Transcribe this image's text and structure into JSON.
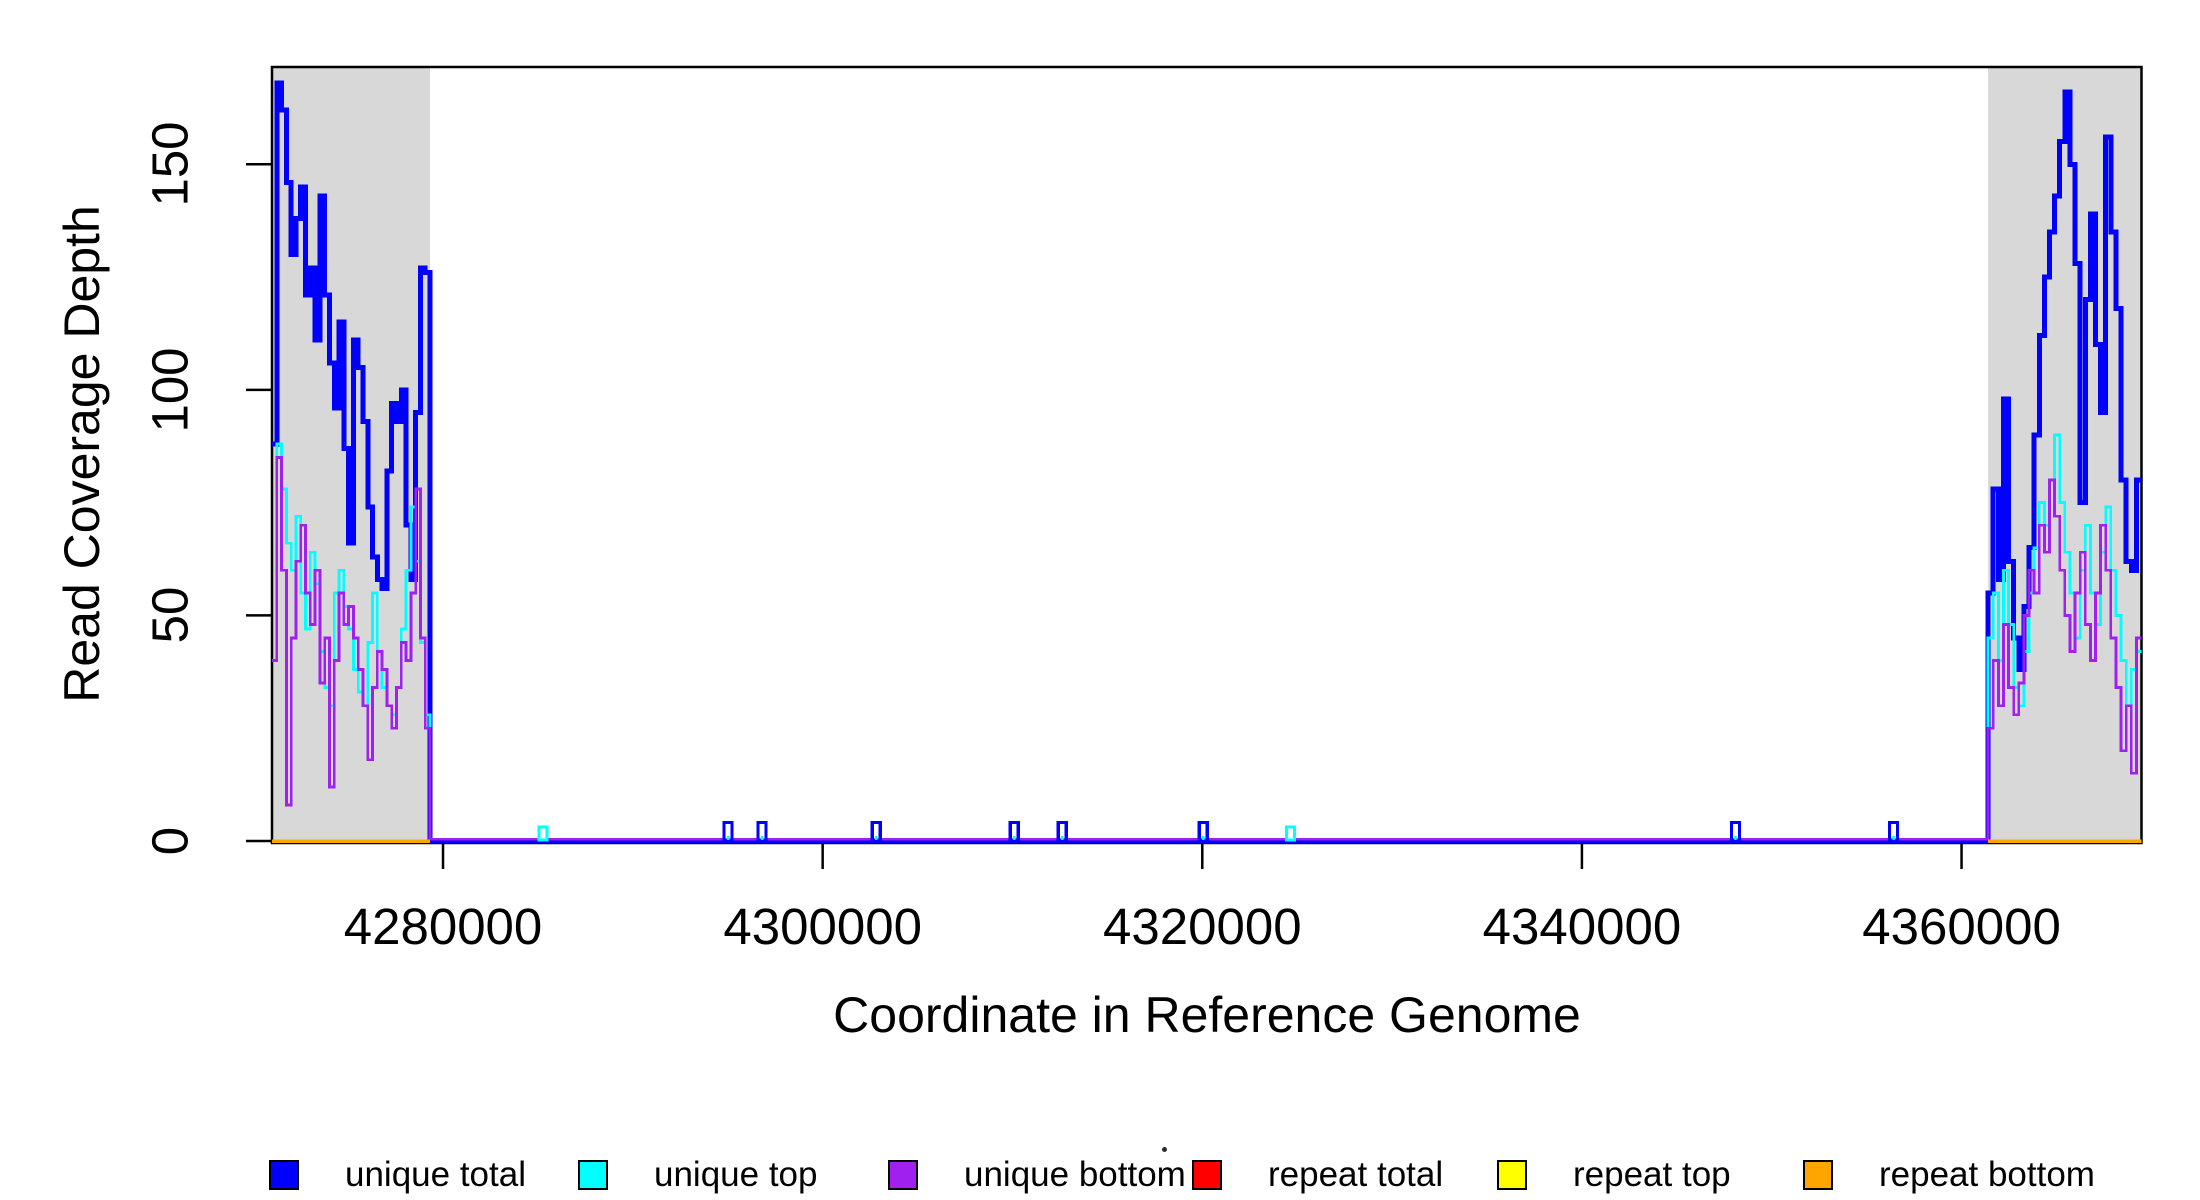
{
  "figure": {
    "background": "#FFFFFF",
    "plot_border_color": "#000000",
    "shading_color": "#D8D8D8"
  },
  "y_axis": {
    "title": "Read Coverage Depth",
    "ticks": [
      "0",
      "50",
      "100",
      "150"
    ],
    "tick_values": [
      0,
      50,
      100,
      150
    ]
  },
  "x_axis": {
    "title": "Coordinate in Reference Genome",
    "ticks": [
      "4280000",
      "4300000",
      "4320000",
      "4340000",
      "4360000"
    ],
    "tick_values": [
      4280000,
      4300000,
      4320000,
      4340000,
      4360000
    ]
  },
  "legend": {
    "items": [
      {
        "label": "unique total",
        "color": "#0000FF"
      },
      {
        "label": "unique top",
        "color": "#00FFFF"
      },
      {
        "label": "unique bottom",
        "color": "#A020F0"
      },
      {
        "label": "repeat total",
        "color": "#FF0000"
      },
      {
        "label": "repeat top",
        "color": "#FFFF00"
      },
      {
        "label": "repeat bottom",
        "color": "#FFA500"
      }
    ]
  },
  "chart_data": {
    "type": "line",
    "line_style": "step",
    "title": "",
    "xlabel": "Coordinate in Reference Genome",
    "ylabel": "Read Coverage Depth",
    "xlim": [
      4270990,
      4369480
    ],
    "ylim": [
      0,
      172
    ],
    "x_ticks": [
      4280000,
      4300000,
      4320000,
      4340000,
      4360000
    ],
    "y_ticks": [
      0,
      50,
      100,
      150
    ],
    "grid": false,
    "legend_position": "bottom",
    "shaded_regions": [
      {
        "x_start": 4270990,
        "x_end": 4279315,
        "color": "#D8D8D8"
      },
      {
        "x_start": 4361400,
        "x_end": 4369480,
        "color": "#D8D8D8"
      }
    ],
    "left_block": {
      "x_start": 4270990,
      "x_end": 4279315,
      "series": [
        {
          "name": "unique total",
          "color": "#0000FF",
          "width": 5,
          "values": [
            88,
            168,
            162,
            146,
            130,
            138,
            145,
            121,
            127,
            111,
            143,
            121,
            106,
            96,
            115,
            87,
            66,
            111,
            105,
            93,
            74,
            63,
            58,
            56,
            82,
            97,
            93,
            100,
            70,
            58,
            95,
            127,
            126
          ]
        },
        {
          "name": "unique top",
          "color": "#00FFFF",
          "width": 2.8,
          "values": [
            40,
            88,
            78,
            66,
            60,
            72,
            55,
            47,
            64,
            57,
            42,
            34,
            30,
            55,
            60,
            52,
            47,
            38,
            33,
            30,
            44,
            55,
            42,
            34,
            30,
            28,
            34,
            47,
            60,
            74,
            62,
            44,
            28
          ]
        },
        {
          "name": "unique bottom",
          "color": "#A020F0",
          "width": 2.8,
          "values": [
            40,
            85,
            60,
            8,
            45,
            62,
            70,
            55,
            48,
            60,
            35,
            45,
            12,
            40,
            55,
            48,
            52,
            45,
            38,
            30,
            18,
            34,
            42,
            38,
            30,
            25,
            34,
            44,
            40,
            55,
            78,
            45,
            25
          ]
        }
      ]
    },
    "right_block": {
      "x_start": 4361400,
      "x_end": 4369480,
      "series": [
        {
          "name": "unique total",
          "color": "#0000FF",
          "width": 5,
          "values": [
            55,
            78,
            58,
            98,
            62,
            45,
            38,
            52,
            65,
            90,
            112,
            125,
            135,
            143,
            155,
            166,
            150,
            128,
            75,
            120,
            139,
            110,
            95,
            156,
            135,
            118,
            80,
            62,
            60,
            80
          ]
        },
        {
          "name": "unique top",
          "color": "#00FFFF",
          "width": 2.8,
          "values": [
            45,
            55,
            40,
            60,
            48,
            34,
            30,
            42,
            55,
            65,
            75,
            70,
            80,
            90,
            75,
            64,
            55,
            45,
            60,
            70,
            55,
            48,
            64,
            74,
            60,
            50,
            40,
            30,
            38,
            42
          ]
        },
        {
          "name": "unique bottom",
          "color": "#A020F0",
          "width": 2.8,
          "values": [
            25,
            40,
            30,
            48,
            34,
            28,
            35,
            50,
            60,
            55,
            70,
            64,
            80,
            72,
            60,
            50,
            42,
            55,
            64,
            48,
            40,
            55,
            70,
            60,
            45,
            34,
            20,
            30,
            15,
            45
          ]
        }
      ]
    },
    "zero_baselines": [
      {
        "name": "repeat lines at zero (left repeat region)",
        "x_start": 4270990,
        "x_end": 4279315,
        "value": 0,
        "color": "#FFA500"
      },
      {
        "name": "unique lines at zero (middle unique region)",
        "x_start": 4279315,
        "x_end": 4361400,
        "value": 0,
        "color": "#0000FF",
        "overlay_color": "#A020F0"
      },
      {
        "name": "repeat lines at zero (right repeat region)",
        "x_start": 4361400,
        "x_end": 4369480,
        "value": 0,
        "color": "#FFA500"
      }
    ],
    "spikes": [
      {
        "x": 4285270,
        "height": 2,
        "color": "#00FFFF"
      },
      {
        "x": 4295020,
        "height": 3,
        "color": "#0000FF"
      },
      {
        "x": 4296810,
        "height": 3,
        "color": "#0000FF"
      },
      {
        "x": 4302820,
        "height": 3,
        "color": "#0000FF"
      },
      {
        "x": 4310090,
        "height": 3,
        "color": "#0000FF"
      },
      {
        "x": 4312620,
        "height": 3,
        "color": "#0000FF"
      },
      {
        "x": 4320050,
        "height": 3,
        "color": "#0000FF"
      },
      {
        "x": 4324640,
        "height": 2,
        "color": "#00FFFF"
      },
      {
        "x": 4348090,
        "height": 3,
        "color": "#0000FF"
      },
      {
        "x": 4356420,
        "height": 3,
        "color": "#0000FF"
      }
    ]
  }
}
